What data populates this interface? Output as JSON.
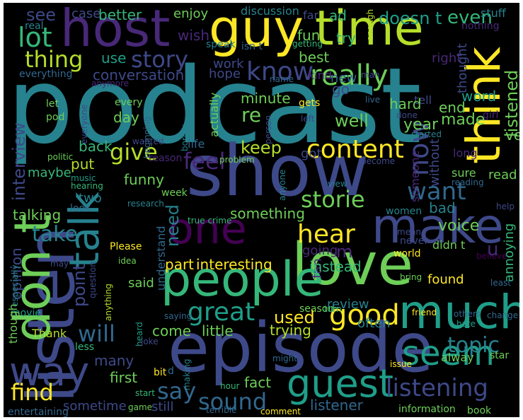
{
  "palette": {
    "c1": "#440154",
    "c2": "#482878",
    "c3": "#3e4989",
    "c4": "#31688e",
    "c5": "#26828e",
    "c6": "#1f9e89",
    "c7": "#35b779",
    "c8": "#6ece58",
    "c9": "#b5de2b",
    "c10": "#fde725"
  },
  "words": {
    "podcast": "podcast",
    "show": "show",
    "listen": "listen",
    "episode": "episode",
    "love": "love",
    "people": "people",
    "make": "make",
    "host": "host",
    "guy": "guy",
    "time": "time",
    "think": "think",
    "dont": "don t",
    "much": "much",
    "one": "one",
    "talk": "talk",
    "way": "way",
    "guest": "guest",
    "seem": "seem",
    "listening": "listening",
    "find": "find",
    "good": "good",
    "great": "great",
    "really": "really",
    "know": "know",
    "content": "content",
    "hear": "hear",
    "want": "want",
    "now": "now",
    "story": "story",
    "thing": "thing",
    "lot": "lot",
    "feel": "feel",
    "give": "give",
    "say": "say",
    "topic": "topic",
    "will": "will",
    "sound": "sound",
    "see": "see",
    "better": "better",
    "enjoy": "enjoy",
    "even": "even",
    "doesnt": "doesn t",
    "ad": "ad",
    "stuff": "stuff",
    "case": "case",
    "discussion": "discussion",
    "far": "far",
    "wish": "wish",
    "fun": "fun",
    "try": "try",
    "real": "real",
    "speak": "speak",
    "isnt": "isn t",
    "getting": "getting",
    "enough": "enough",
    "nothing": "nothing",
    "use": "use",
    "best": "best",
    "right": "right",
    "thought": "thought",
    "listened": "listened",
    "conversation": "conversation",
    "hope": "hope",
    "work": "work",
    "everything": "everything",
    "anymore": "anymore",
    "name": "name",
    "kind": "kind",
    "man": "man",
    "new": "new",
    "go": "go",
    "let": "let",
    "pod": "pod",
    "every": "every",
    "gets": "gets",
    "live": "live",
    "tell": "tell",
    "minute": "minute",
    "word": "word",
    "everyone": "everyone",
    "day": "day",
    "actually": "actually",
    "person": "person",
    "left": "left",
    "hard": "hard",
    "end": "end",
    "girl": "girl",
    "well": "well",
    "done": "done",
    "re": "re",
    "year": "year",
    "made": "made",
    "ve": "ve",
    "interview": "interview",
    "back": "back",
    "keep": "keep",
    "beginning": "beginning",
    "boring": "boring",
    "started": "started",
    "wanted": "wanted",
    "life": "life",
    "without": "without",
    "long": "long",
    "put": "put",
    "politic": "politic",
    "reason": "reason",
    "problem": "problem",
    "got": "got",
    "become": "become",
    "maybe": "maybe",
    "music": "music",
    "hearing": "hearing",
    "anyone": "anyone",
    "someone": "someone",
    "view": "view",
    "sure": "sure",
    "reading": "reading",
    "read": "read",
    "funny": "funny",
    "week": "week",
    "talking": "talking",
    "two": "two",
    "look": "look",
    "research": "research",
    "something": "something",
    "storie": "storie",
    "women": "women",
    "bad": "bad",
    "help": "help",
    "take": "take",
    "need": "need",
    "true_crime": "true crime",
    "mean": "mean",
    "voice": "voice",
    "understand": "understand",
    "Please": "Please",
    "never": "never",
    "going": "going",
    "m": "m",
    "part": "part",
    "interesting": "interesting",
    "fan": "fan",
    "instead": "instead",
    "world": "world",
    "didnt": "didn t",
    "believe": "believe",
    "u": "u",
    "annoying": "annoying",
    "point": "point",
    "idea": "idea",
    "opinion": "opinion",
    "especially": "especially",
    "question": "question",
    "may": "may",
    "said": "said",
    "found": "found",
    "season": "season",
    "bring": "bring",
    "least": "least",
    "movie": "movie",
    "review": "review",
    "anything": "anything",
    "though": "though",
    "saying": "saying",
    "turn": "turn",
    "used": "used",
    "heard": "heard",
    "come": "come",
    "little": "little",
    "trying": "trying",
    "friend": "friend",
    "others": "others",
    "change": "change",
    "Thank": "Thank",
    "less": "less",
    "often": "often",
    "hate": "hate",
    "many": "many",
    "joke": "joke",
    "alway": "alway",
    "star": "star",
    "first": "first",
    "might": "might",
    "fact": "fact",
    "issue": "issue",
    "bit": "bit",
    "d": "d",
    "making": "making",
    "start": "start",
    "hour": "hour",
    "sometime": "sometime",
    "still": "still",
    "listener": "listener",
    "entertaining": "entertaining",
    "game": "game",
    "terrible": "terrible",
    "comment": "comment",
    "information": "information",
    "book": "book"
  }
}
